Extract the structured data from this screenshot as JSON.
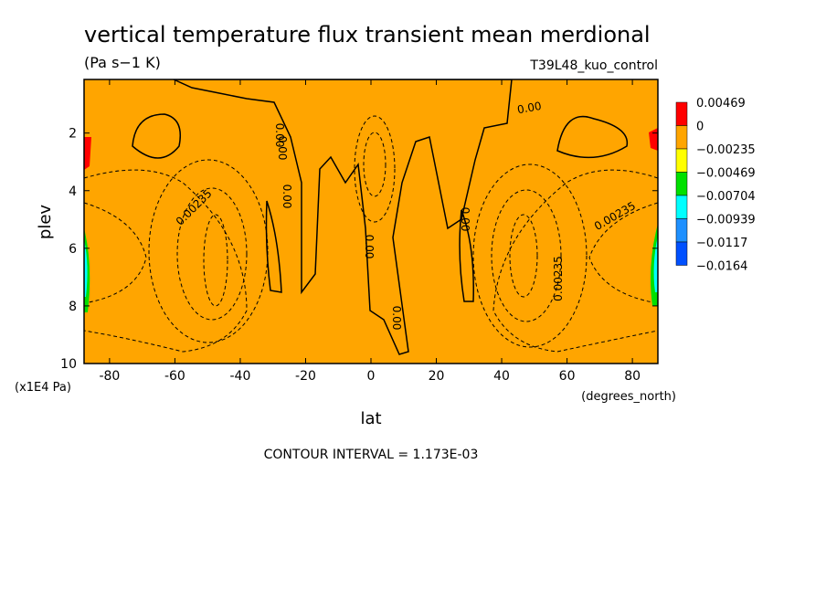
{
  "chart_data": {
    "type": "contour",
    "title": "vertical temperature flux transient mean merdional",
    "subtitle": "(Pa s−1 K)",
    "dataset": "T39L48_kuo_control",
    "x_label": "lat",
    "x_units": "(degrees_north)",
    "y_label": "plev",
    "y_units": "(x1E4 Pa)",
    "xlim": [
      -87.8,
      87.8
    ],
    "xticks": [
      -80,
      -60,
      -40,
      -20,
      0,
      20,
      40,
      60,
      80
    ],
    "ylim": [
      10,
      0.14
    ],
    "yticks": [
      2,
      4,
      6,
      8,
      10
    ],
    "levels": [
      0.00469,
      0,
      {
        "value": -0.00235,
        "label": "−0.00235"
      },
      {
        "value": -0.00469,
        "label": "−0.00469"
      },
      {
        "value": -0.00704,
        "label": "−0.00704"
      },
      {
        "value": -0.00939,
        "label": "−0.00939"
      },
      {
        "value": -0.0117,
        "label": "−0.0117"
      },
      {
        "value": -0.0164,
        "label": "−0.0164"
      }
    ],
    "colors": [
      "#ff0000",
      "#ffa500",
      "#ffff00",
      "#00e000",
      "#00ffff",
      "#1e90ff",
      "#0050ff"
    ],
    "contour_labels": [
      "0.00",
      "0.00",
      "0.00",
      "0.00",
      "0.00",
      "0.00",
      "0.00",
      "0.00235",
      "0.00235",
      "0.00235"
    ],
    "annotation": "CONTOUR INTERVAL = 1.173E-03"
  }
}
